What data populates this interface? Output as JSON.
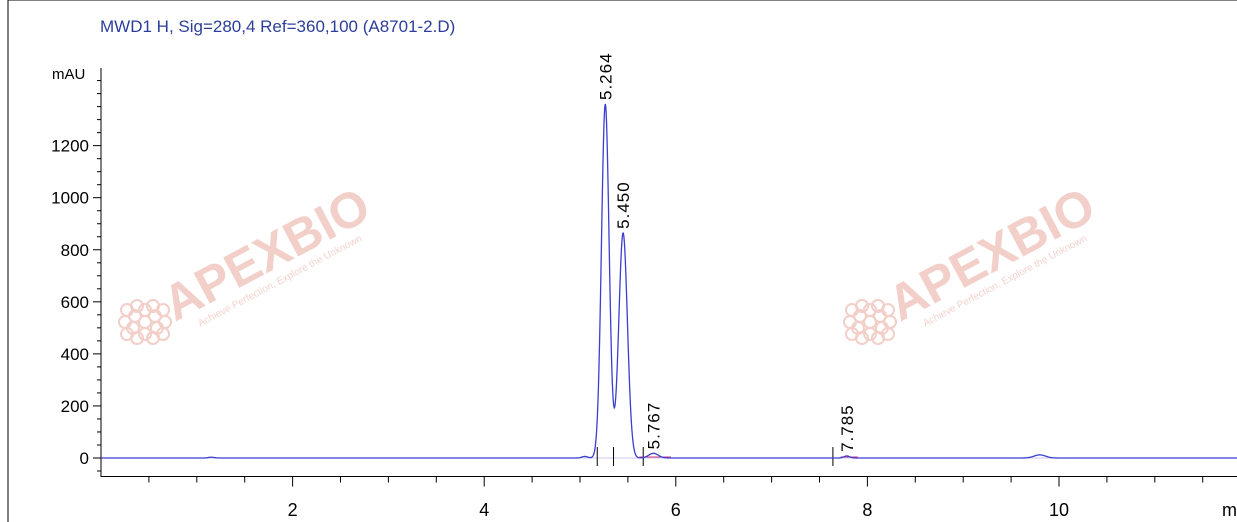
{
  "chart_data": {
    "type": "line",
    "title": "MWD1 H, Sig=280,4 Ref=360,100 (A8701-2.D)",
    "ylabel": "mAU",
    "xlabel": "mi",
    "xlim": [
      0,
      11.95
    ],
    "ylim": [
      -80,
      1530
    ],
    "xticks": [
      2,
      4,
      6,
      8,
      10
    ],
    "yticks": [
      0,
      200,
      400,
      600,
      800,
      1000,
      1200
    ],
    "series": [
      {
        "color": "#3a3fcf",
        "peaks": [
          {
            "rt": 5.264,
            "height": 1360,
            "width": 0.04
          },
          {
            "rt": 5.45,
            "height": 865,
            "width": 0.045
          },
          {
            "rt": 5.767,
            "height": 18,
            "width": 0.05
          },
          {
            "rt": 7.785,
            "height": 8,
            "width": 0.03
          },
          {
            "rt": 9.8,
            "height": 12,
            "width": 0.06
          },
          {
            "rt": 5.05,
            "height": 6,
            "width": 0.03
          },
          {
            "rt": 1.15,
            "height": 3,
            "width": 0.03
          }
        ]
      }
    ],
    "peak_labels": [
      "5.264",
      "5.450",
      "5.767",
      "7.785"
    ],
    "watermark": {
      "brand": "APEXBIO",
      "tagline": "Achieve Perfection, Explore the Unknown",
      "color": "#f2cfc9"
    }
  }
}
